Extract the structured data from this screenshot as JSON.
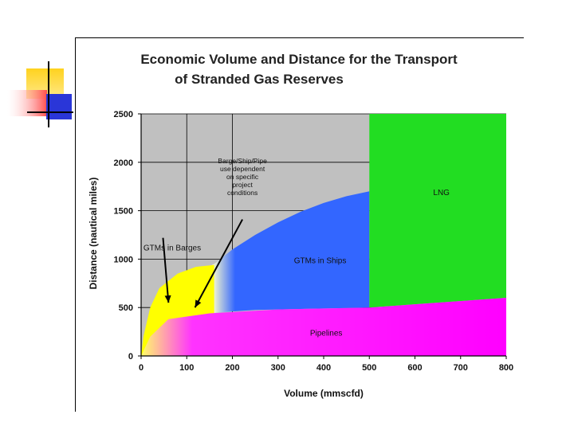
{
  "chart_data": {
    "type": "area",
    "title_line1": "Economic Volume and Distance for the Transport",
    "title_line2": "of Stranded Gas Reserves",
    "xlabel": "Volume (mmscfd)",
    "ylabel": "Distance (nautical miles)",
    "xlim": [
      0,
      800
    ],
    "ylim": [
      0,
      2500
    ],
    "x_ticks": [
      0,
      100,
      200,
      300,
      400,
      500,
      600,
      700,
      800
    ],
    "y_ticks": [
      0,
      500,
      1000,
      1500,
      2000,
      2500
    ],
    "vertical_grid": [
      100,
      200
    ],
    "grid": true,
    "regions": [
      {
        "name": "LNG",
        "label": "LNG",
        "color": "#22dd22",
        "polygon": [
          [
            500,
            500
          ],
          [
            800,
            600
          ],
          [
            800,
            2500
          ],
          [
            500,
            2500
          ]
        ],
        "label_at": [
          640,
          1660
        ]
      },
      {
        "name": "GTMs in Ships",
        "label": "GTMs in Ships",
        "color": "#3366ff",
        "boundary": [
          [
            80,
            380
          ],
          [
            100,
            400
          ],
          [
            150,
            440
          ],
          [
            200,
            460
          ],
          [
            250,
            475
          ],
          [
            300,
            480
          ],
          [
            400,
            490
          ],
          [
            500,
            500
          ],
          [
            500,
            1700
          ],
          [
            450,
            1650
          ],
          [
            400,
            1580
          ],
          [
            350,
            1490
          ],
          [
            300,
            1380
          ],
          [
            250,
            1250
          ],
          [
            200,
            1100
          ],
          [
            160,
            950
          ],
          [
            120,
            850
          ],
          [
            100,
            800
          ]
        ],
        "label_at": [
          335,
          960
        ]
      },
      {
        "name": "GTMs in Barges",
        "label": "GTMs in Barges",
        "color": "#ffff00",
        "boundary": [
          [
            0,
            0
          ],
          [
            60,
            250
          ],
          [
            80,
            380
          ],
          [
            120,
            420
          ],
          [
            160,
            440
          ],
          [
            160,
            940
          ],
          [
            120,
            920
          ],
          [
            80,
            850
          ],
          [
            40,
            700
          ],
          [
            20,
            500
          ],
          [
            5,
            200
          ]
        ],
        "label_at": [
          5,
          1090
        ]
      },
      {
        "name": "Pipelines",
        "label": "Pipelines",
        "color": "#ff00ff",
        "boundary": [
          [
            0,
            0
          ],
          [
            800,
            0
          ],
          [
            800,
            600
          ],
          [
            500,
            500
          ],
          [
            300,
            480
          ],
          [
            150,
            440
          ],
          [
            60,
            380
          ],
          [
            20,
            200
          ]
        ],
        "label_at": [
          370,
          210
        ]
      }
    ],
    "annotations": [
      {
        "lines": [
          "Barge/Ship/Pipe",
          "use dependent",
          "on specific",
          "project",
          "conditions"
        ],
        "at": [
          222,
          1990
        ]
      }
    ],
    "arrows": [
      {
        "from": [
          48,
          1220
        ],
        "to": [
          60,
          550
        ]
      },
      {
        "from": [
          222,
          1410
        ],
        "to": [
          118,
          500
        ]
      }
    ]
  },
  "colors": {
    "background_region": "#c0c0c0",
    "decor_yellow": "#ffd21e",
    "decor_red": "#ff4d4d",
    "decor_blue": "#2a36d8"
  }
}
